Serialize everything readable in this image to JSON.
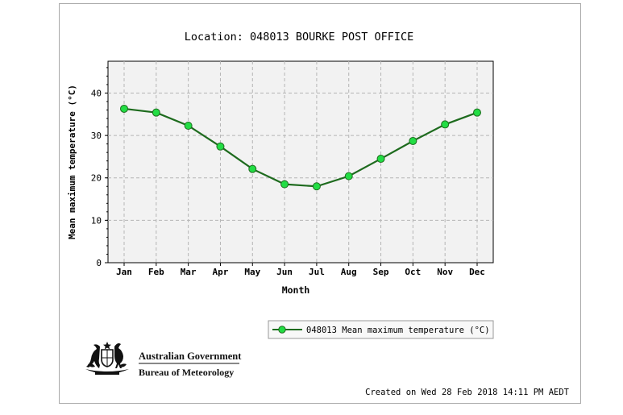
{
  "chart_data": {
    "type": "line",
    "title": "Location: 048013 BOURKE POST OFFICE",
    "xlabel": "Month",
    "ylabel": "Mean maximum temperature (°C)",
    "categories": [
      "Jan",
      "Feb",
      "Mar",
      "Apr",
      "May",
      "Jun",
      "Jul",
      "Aug",
      "Sep",
      "Oct",
      "Nov",
      "Dec"
    ],
    "series": [
      {
        "name": "048013 Mean maximum temperature (°C)",
        "values": [
          36.3,
          35.4,
          32.3,
          27.4,
          22.1,
          18.5,
          18.0,
          20.4,
          24.5,
          28.7,
          32.6,
          35.4
        ],
        "color": "#1e6b1e",
        "marker_color": "#22dd44"
      }
    ],
    "ylim": [
      0,
      47.5
    ],
    "yticks": [
      0,
      10,
      20,
      30,
      40
    ],
    "grid": true,
    "legend_position": "bottom-right",
    "plot_background": "#f2f2f2"
  },
  "footer": {
    "created": "Created on Wed 28 Feb 2018 14:11 PM AEDT"
  },
  "logo": {
    "line1": "Australian Government",
    "line2": "Bureau of Meteorology"
  }
}
